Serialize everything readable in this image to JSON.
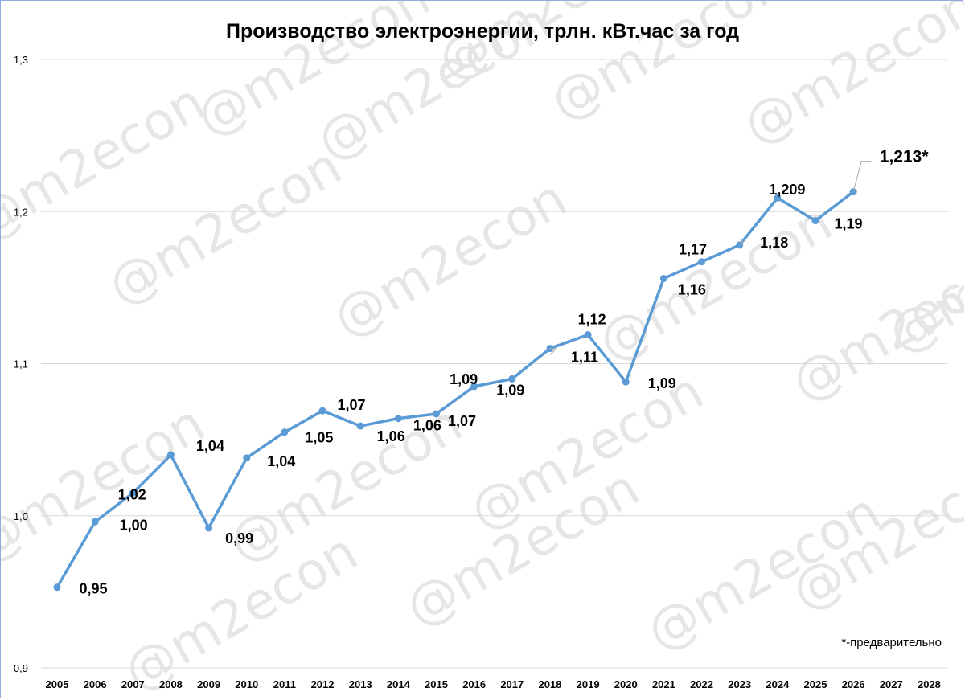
{
  "chart_data": {
    "type": "line",
    "title": "Производство электроэнергии, трлн. кВт.час за год",
    "xlabel": "",
    "ylabel": "",
    "ylim": [
      0.9,
      1.3
    ],
    "y_ticks": [
      "0,9",
      "1,0",
      "1,1",
      "1,2",
      "1,3"
    ],
    "x_ticks": [
      "2005",
      "2006",
      "2007",
      "2008",
      "2009",
      "2010",
      "2011",
      "2012",
      "2013",
      "2014",
      "2015",
      "2016",
      "2017",
      "2018",
      "2019",
      "2020",
      "2021",
      "2022",
      "2023",
      "2024",
      "2025",
      "2026",
      "2027",
      "2028"
    ],
    "grid": "horizontal",
    "legend": "none",
    "series": [
      {
        "color": "#5b9bd5",
        "x": [
          2005,
          2006,
          2007,
          2008,
          2009,
          2010,
          2011,
          2012,
          2013,
          2014,
          2015,
          2016,
          2017,
          2018,
          2019,
          2020,
          2021,
          2022,
          2023,
          2024,
          2025,
          2026
        ],
        "values": [
          0.953,
          0.996,
          1.015,
          1.04,
          0.992,
          1.038,
          1.055,
          1.069,
          1.059,
          1.064,
          1.067,
          1.085,
          1.09,
          1.11,
          1.119,
          1.088,
          1.156,
          1.167,
          1.178,
          1.209,
          1.194,
          1.213
        ],
        "labels": [
          "0,95",
          "1,00",
          "1,02",
          "1,04",
          "0,99",
          "1,04",
          "1,05",
          "1,07",
          "1,06",
          "1,06",
          "1,07",
          "1,09",
          "1,09",
          "1,11",
          "1,12",
          "1,09",
          "1,16",
          "1,17",
          "1,18",
          "1,209",
          "1,19",
          "1,213*"
        ]
      }
    ],
    "annotation": "*-предварительно",
    "watermark": "@m2econ"
  }
}
